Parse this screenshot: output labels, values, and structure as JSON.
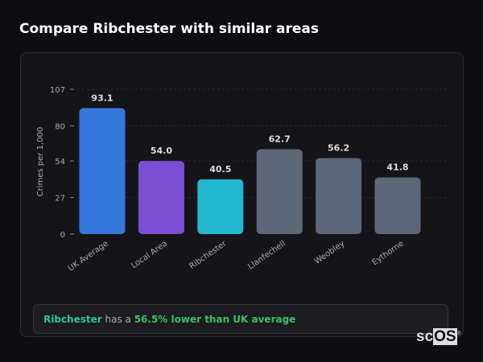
{
  "title": "Compare Ribchester with similar areas",
  "chart_data": {
    "type": "bar",
    "categories": [
      "UK Average",
      "Local Area",
      "Ribchester",
      "Llanfechell",
      "Weobley",
      "Eythorne"
    ],
    "values": [
      93.1,
      54.0,
      40.5,
      62.7,
      56.2,
      41.8
    ],
    "value_labels": [
      "93.1",
      "54.0",
      "40.5",
      "62.7",
      "56.2",
      "41.8"
    ],
    "colors": [
      "#3578dc",
      "#7b4fd4",
      "#22b8d0",
      "#5c6779",
      "#5c6779",
      "#5c6779"
    ],
    "ylabel": "Crimes per 1,000",
    "yticks": [
      0,
      27,
      54,
      80,
      107
    ],
    "ylim": [
      0,
      107
    ],
    "grid": true
  },
  "summary": {
    "area": "Ribchester",
    "middle": " has a ",
    "highlight": "56.5% lower than UK average"
  },
  "logo": {
    "text_sc": "sc",
    "text_os": "OS",
    "mark": "®"
  }
}
